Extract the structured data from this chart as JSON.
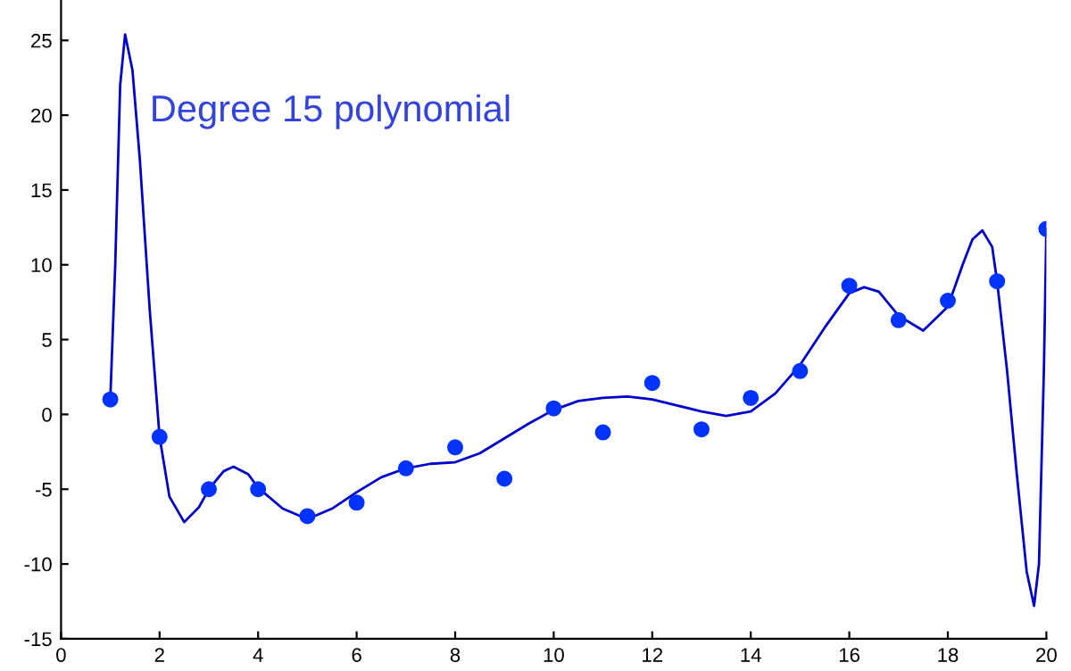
{
  "chart_data": {
    "type": "scatter",
    "annotations": [
      "Degree 15 polynomial"
    ],
    "xlim": [
      0,
      20
    ],
    "ylim": [
      -15,
      27.7
    ],
    "xticks": [
      0,
      2,
      4,
      6,
      8,
      10,
      12,
      14,
      16,
      18,
      20
    ],
    "yticks": [
      -15,
      -10,
      -5,
      0,
      5,
      10,
      15,
      20,
      25
    ],
    "grid": false,
    "legend": false,
    "series": [
      {
        "color": "#0033ff",
        "marker": "circle",
        "x": [
          1,
          2,
          3,
          4,
          5,
          6,
          7,
          8,
          9,
          10,
          11,
          12,
          13,
          14,
          15,
          16,
          17,
          18,
          19,
          20
        ],
        "values": [
          1.0,
          -1.5,
          -5,
          -5,
          -6.8,
          -5.9,
          -3.6,
          -2.2,
          -4.3,
          0.4,
          -1.2,
          2.1,
          -1.0,
          1.1,
          2.9,
          8.6,
          6.3,
          7.6,
          8.9,
          12.4
        ]
      },
      {
        "type": "line",
        "color": "#0000cc",
        "marker": "none",
        "line_style": "solid",
        "x": [
          1,
          1.1,
          1.2,
          1.3,
          1.45,
          1.6,
          1.8,
          2,
          2.2,
          2.5,
          2.8,
          3,
          3.3,
          3.5,
          3.8,
          4,
          4.5,
          5,
          5.5,
          6,
          6.5,
          7,
          7.5,
          8,
          8.5,
          9,
          9.5,
          10,
          10.5,
          11,
          11.5,
          12,
          12.5,
          13,
          13.5,
          14,
          14.5,
          15,
          15.5,
          16,
          16.3,
          16.6,
          17,
          17.5,
          18,
          18.3,
          18.5,
          18.7,
          18.9,
          19,
          19.2,
          19.4,
          19.6,
          19.75,
          19.85,
          19.95,
          20
        ],
        "values": [
          1,
          10,
          22,
          25.4,
          23,
          17,
          7,
          -1.5,
          -5.5,
          -7.2,
          -6.2,
          -5,
          -3.8,
          -3.5,
          -4.0,
          -4.9,
          -6.3,
          -7.0,
          -6.3,
          -5.2,
          -4.2,
          -3.6,
          -3.3,
          -3.2,
          -2.6,
          -1.6,
          -0.6,
          0.3,
          0.9,
          1.1,
          1.2,
          1.0,
          0.6,
          0.2,
          -0.1,
          0.2,
          1.4,
          3.3,
          5.8,
          8.1,
          8.5,
          8.2,
          6.6,
          5.6,
          7.2,
          10,
          11.7,
          12.3,
          11.2,
          8.9,
          3,
          -4,
          -10.5,
          -12.8,
          -10,
          3,
          12.4
        ]
      }
    ]
  }
}
